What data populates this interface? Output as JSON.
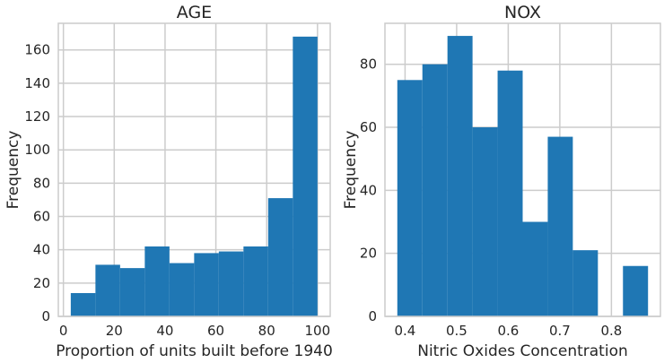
{
  "chart_data": [
    {
      "type": "bar",
      "title": "AGE",
      "xlabel": "Proportion of units built before 1940",
      "ylabel": "Frequency",
      "xlim": [
        -2.0,
        105.0
      ],
      "ylim": [
        0,
        176
      ],
      "xticks": [
        0,
        20,
        40,
        60,
        80,
        100
      ],
      "xtick_labels": [
        "0",
        "20",
        "40",
        "60",
        "80",
        "100"
      ],
      "yticks": [
        0,
        20,
        40,
        60,
        80,
        100,
        120,
        140,
        160
      ],
      "ytick_labels": [
        "0",
        "20",
        "40",
        "60",
        "80",
        "100",
        "120",
        "140",
        "160"
      ],
      "bin_edges": [
        2.9,
        12.61,
        22.32,
        32.03,
        41.74,
        51.45,
        61.16,
        70.87,
        80.58,
        90.29,
        100.0
      ],
      "values": [
        14,
        31,
        29,
        42,
        32,
        38,
        39,
        42,
        71,
        168
      ],
      "color": "#1f77b4",
      "grid": true
    },
    {
      "type": "bar",
      "title": "NOX",
      "xlabel": "Nitric Oxides Concentration",
      "ylabel": "Frequency",
      "xlim": [
        0.361,
        0.895
      ],
      "ylim": [
        0,
        93
      ],
      "xticks": [
        0.4,
        0.5,
        0.6,
        0.7,
        0.8
      ],
      "xtick_labels": [
        "0.4",
        "0.5",
        "0.6",
        "0.7",
        "0.8"
      ],
      "yticks": [
        0,
        20,
        40,
        60,
        80
      ],
      "ytick_labels": [
        "0",
        "20",
        "40",
        "60",
        "80"
      ],
      "bin_edges": [
        0.385,
        0.4336,
        0.4822,
        0.5308,
        0.5794,
        0.628,
        0.6766,
        0.7252,
        0.7738,
        0.8224,
        0.871
      ],
      "values": [
        75,
        80,
        89,
        60,
        78,
        30,
        57,
        21,
        0,
        16
      ],
      "color": "#1f77b4",
      "grid": true
    }
  ]
}
